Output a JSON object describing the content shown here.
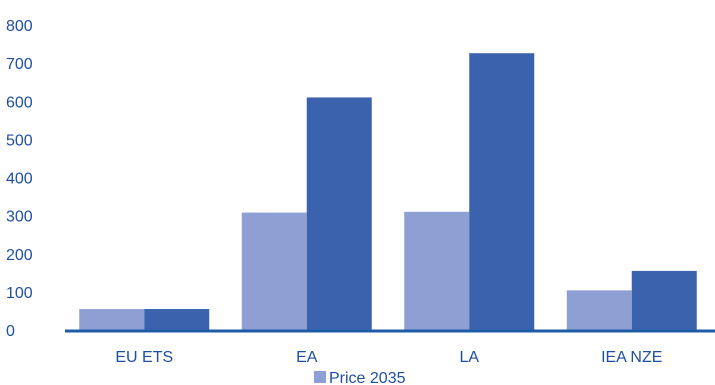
{
  "chart_data": {
    "type": "bar",
    "categories": [
      "EU ETS",
      "EA",
      "LA",
      "IEA NZE"
    ],
    "series": [
      {
        "name": "Price 2035",
        "values": [
          55,
          308,
          310,
          104
        ],
        "color": "#8e9fd4"
      },
      {
        "name": "",
        "values": [
          55,
          610,
          726,
          155
        ],
        "color": "#3b63ad"
      }
    ],
    "y_ticks": [
      "0",
      "100",
      "200",
      "300",
      "400",
      "500",
      "600",
      "700",
      "800"
    ],
    "ylim": [
      0,
      800
    ],
    "grid": false,
    "legend": {
      "position": "bottom",
      "entries": [
        "Price 2035"
      ]
    },
    "axis_color": "#1f5ca8",
    "text_color": "#1f4fa0"
  }
}
